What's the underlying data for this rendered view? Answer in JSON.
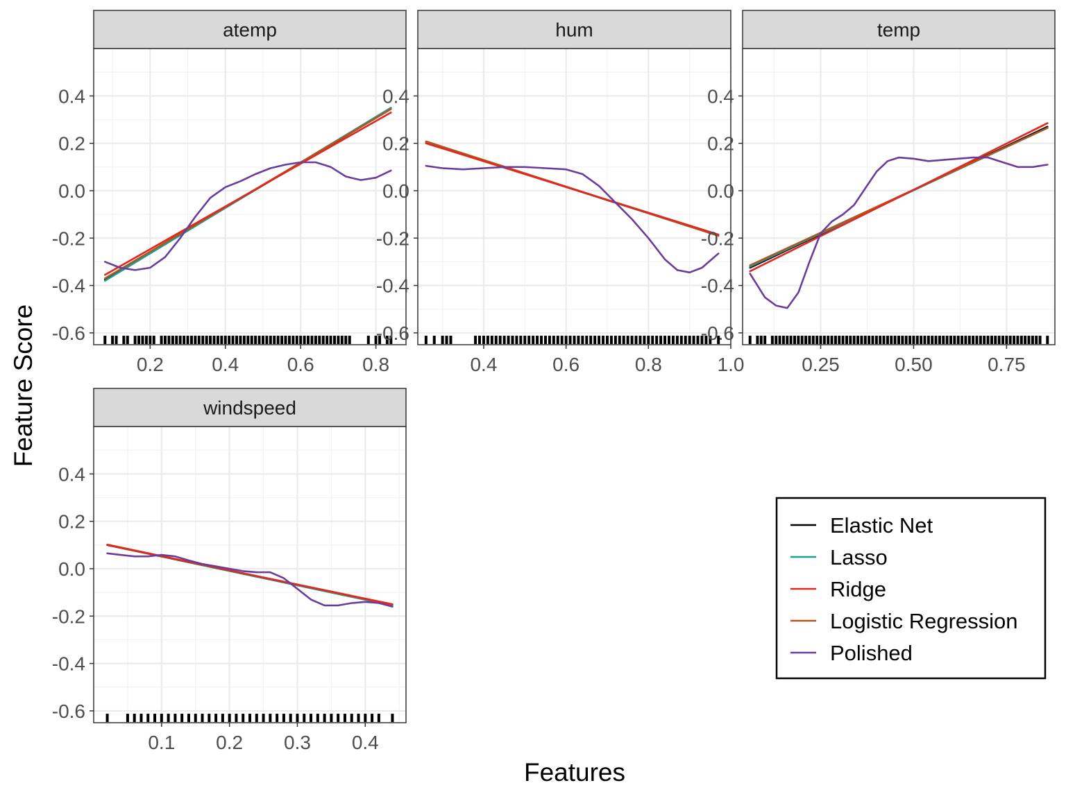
{
  "chart_data": {
    "type": "line",
    "xlabel": "Features",
    "ylabel": "Feature Score",
    "ylim": [
      -0.65,
      0.6
    ],
    "y_ticks": [
      -0.6,
      -0.4,
      -0.2,
      0.0,
      0.2,
      0.4
    ],
    "y_tick_labels": [
      "-0.6",
      "-0.4",
      "-0.2",
      "0.0",
      "0.2",
      "0.4"
    ],
    "grid": true,
    "legend_position": "bottom-right",
    "series": [
      {
        "name": "Elastic Net",
        "color": "#000000"
      },
      {
        "name": "Lasso",
        "color": "#1b9e96"
      },
      {
        "name": "Ridge",
        "color": "#e3271e"
      },
      {
        "name": "Logistic Regression",
        "color": "#b0561f"
      },
      {
        "name": "Polished",
        "color": "#6a3d9a"
      }
    ],
    "panels": [
      {
        "title": "atemp",
        "xlim": [
          0.05,
          0.88
        ],
        "x_ticks": [
          0.2,
          0.4,
          0.6,
          0.8
        ],
        "x_tick_labels": [
          "0.2",
          "0.4",
          "0.6",
          "0.8"
        ],
        "lines": {
          "Elastic Net": [
            [
              0.08,
              -0.375
            ],
            [
              0.84,
              0.345
            ]
          ],
          "Lasso": [
            [
              0.08,
              -0.38
            ],
            [
              0.84,
              0.35
            ]
          ],
          "Ridge": [
            [
              0.08,
              -0.355
            ],
            [
              0.84,
              0.33
            ]
          ],
          "Logistic Regression": [
            [
              0.08,
              -0.37
            ],
            [
              0.84,
              0.345
            ]
          ],
          "Polished": [
            [
              0.08,
              -0.3
            ],
            [
              0.12,
              -0.325
            ],
            [
              0.16,
              -0.335
            ],
            [
              0.2,
              -0.325
            ],
            [
              0.24,
              -0.28
            ],
            [
              0.28,
              -0.2
            ],
            [
              0.32,
              -0.11
            ],
            [
              0.36,
              -0.03
            ],
            [
              0.4,
              0.015
            ],
            [
              0.44,
              0.04
            ],
            [
              0.48,
              0.07
            ],
            [
              0.52,
              0.095
            ],
            [
              0.56,
              0.11
            ],
            [
              0.6,
              0.12
            ],
            [
              0.64,
              0.12
            ],
            [
              0.68,
              0.1
            ],
            [
              0.72,
              0.06
            ],
            [
              0.76,
              0.045
            ],
            [
              0.8,
              0.055
            ],
            [
              0.84,
              0.085
            ]
          ]
        },
        "rug": [
          0.08,
          0.1,
          0.11,
          0.13,
          0.14,
          0.16,
          0.17,
          0.18,
          0.19,
          0.2,
          0.21,
          0.23,
          0.24,
          0.25,
          0.26,
          0.27,
          0.28,
          0.29,
          0.3,
          0.31,
          0.32,
          0.33,
          0.34,
          0.35,
          0.36,
          0.37,
          0.38,
          0.39,
          0.4,
          0.41,
          0.42,
          0.43,
          0.44,
          0.45,
          0.46,
          0.47,
          0.48,
          0.49,
          0.5,
          0.51,
          0.52,
          0.53,
          0.54,
          0.55,
          0.56,
          0.57,
          0.58,
          0.59,
          0.6,
          0.61,
          0.62,
          0.63,
          0.64,
          0.65,
          0.66,
          0.67,
          0.68,
          0.69,
          0.7,
          0.71,
          0.72,
          0.73,
          0.78,
          0.8,
          0.81,
          0.83,
          0.84
        ]
      },
      {
        "title": "hum",
        "xlim": [
          0.24,
          1.0
        ],
        "x_ticks": [
          0.4,
          0.6,
          0.8,
          1.0
        ],
        "x_tick_labels": [
          "0.4",
          "0.6",
          "0.8",
          "1.0"
        ],
        "lines": {
          "Elastic Net": [
            [
              0.26,
              0.205
            ],
            [
              0.97,
              -0.19
            ]
          ],
          "Lasso": [
            [
              0.26,
              0.205
            ],
            [
              0.97,
              -0.19
            ]
          ],
          "Ridge": [
            [
              0.26,
              0.2
            ],
            [
              0.97,
              -0.185
            ]
          ],
          "Logistic Regression": [
            [
              0.26,
              0.208
            ],
            [
              0.97,
              -0.19
            ]
          ],
          "Polished": [
            [
              0.26,
              0.105
            ],
            [
              0.3,
              0.095
            ],
            [
              0.35,
              0.09
            ],
            [
              0.4,
              0.095
            ],
            [
              0.45,
              0.1
            ],
            [
              0.5,
              0.1
            ],
            [
              0.55,
              0.095
            ],
            [
              0.6,
              0.09
            ],
            [
              0.64,
              0.07
            ],
            [
              0.68,
              0.02
            ],
            [
              0.72,
              -0.05
            ],
            [
              0.76,
              -0.12
            ],
            [
              0.8,
              -0.2
            ],
            [
              0.84,
              -0.29
            ],
            [
              0.87,
              -0.335
            ],
            [
              0.9,
              -0.345
            ],
            [
              0.93,
              -0.325
            ],
            [
              0.97,
              -0.265
            ]
          ]
        },
        "rug": [
          0.26,
          0.28,
          0.3,
          0.31,
          0.32,
          0.38,
          0.39,
          0.4,
          0.41,
          0.42,
          0.43,
          0.44,
          0.45,
          0.46,
          0.47,
          0.48,
          0.49,
          0.5,
          0.51,
          0.52,
          0.53,
          0.54,
          0.55,
          0.56,
          0.57,
          0.58,
          0.59,
          0.6,
          0.61,
          0.62,
          0.63,
          0.64,
          0.65,
          0.66,
          0.67,
          0.68,
          0.69,
          0.7,
          0.71,
          0.72,
          0.73,
          0.74,
          0.75,
          0.76,
          0.77,
          0.78,
          0.79,
          0.8,
          0.81,
          0.82,
          0.83,
          0.84,
          0.85,
          0.86,
          0.87,
          0.88,
          0.89,
          0.9,
          0.91,
          0.92,
          0.93,
          0.94,
          0.95,
          0.97
        ]
      },
      {
        "title": "temp",
        "xlim": [
          0.04,
          0.88
        ],
        "x_ticks": [
          0.25,
          0.5,
          0.75
        ],
        "x_tick_labels": [
          "0.25",
          "0.50",
          "0.75"
        ],
        "lines": {
          "Elastic Net": [
            [
              0.06,
              -0.325
            ],
            [
              0.86,
              0.27
            ]
          ],
          "Lasso": [
            [
              0.06,
              -0.32
            ],
            [
              0.86,
              0.265
            ]
          ],
          "Ridge": [
            [
              0.06,
              -0.34
            ],
            [
              0.86,
              0.285
            ]
          ],
          "Logistic Regression": [
            [
              0.06,
              -0.315
            ],
            [
              0.86,
              0.265
            ]
          ],
          "Polished": [
            [
              0.06,
              -0.35
            ],
            [
              0.08,
              -0.4
            ],
            [
              0.1,
              -0.45
            ],
            [
              0.13,
              -0.485
            ],
            [
              0.16,
              -0.495
            ],
            [
              0.19,
              -0.43
            ],
            [
              0.22,
              -0.3
            ],
            [
              0.25,
              -0.18
            ],
            [
              0.28,
              -0.13
            ],
            [
              0.31,
              -0.1
            ],
            [
              0.34,
              -0.06
            ],
            [
              0.37,
              0.01
            ],
            [
              0.4,
              0.08
            ],
            [
              0.43,
              0.125
            ],
            [
              0.46,
              0.14
            ],
            [
              0.5,
              0.135
            ],
            [
              0.54,
              0.125
            ],
            [
              0.58,
              0.13
            ],
            [
              0.62,
              0.135
            ],
            [
              0.66,
              0.14
            ],
            [
              0.7,
              0.14
            ],
            [
              0.74,
              0.12
            ],
            [
              0.78,
              0.1
            ],
            [
              0.82,
              0.1
            ],
            [
              0.86,
              0.11
            ]
          ]
        },
        "rug": [
          0.06,
          0.08,
          0.09,
          0.1,
          0.12,
          0.13,
          0.14,
          0.15,
          0.16,
          0.17,
          0.18,
          0.19,
          0.2,
          0.21,
          0.22,
          0.23,
          0.24,
          0.25,
          0.26,
          0.27,
          0.28,
          0.29,
          0.3,
          0.31,
          0.32,
          0.33,
          0.34,
          0.35,
          0.36,
          0.37,
          0.38,
          0.39,
          0.4,
          0.41,
          0.42,
          0.43,
          0.44,
          0.45,
          0.46,
          0.47,
          0.48,
          0.49,
          0.5,
          0.51,
          0.52,
          0.53,
          0.54,
          0.55,
          0.56,
          0.57,
          0.58,
          0.59,
          0.6,
          0.61,
          0.62,
          0.63,
          0.64,
          0.65,
          0.66,
          0.67,
          0.68,
          0.69,
          0.7,
          0.71,
          0.72,
          0.73,
          0.74,
          0.75,
          0.76,
          0.77,
          0.78,
          0.79,
          0.8,
          0.81,
          0.82,
          0.83,
          0.84,
          0.86
        ]
      },
      {
        "title": "windspeed",
        "xlim": [
          0.0,
          0.46
        ],
        "x_ticks": [
          0.1,
          0.2,
          0.3,
          0.4
        ],
        "x_tick_labels": [
          "0.1",
          "0.2",
          "0.3",
          "0.4"
        ],
        "lines": {
          "Elastic Net": [
            [
              0.02,
              0.1
            ],
            [
              0.44,
              -0.155
            ]
          ],
          "Lasso": [
            [
              0.02,
              0.1
            ],
            [
              0.44,
              -0.155
            ]
          ],
          "Ridge": [
            [
              0.02,
              0.1
            ],
            [
              0.44,
              -0.15
            ]
          ],
          "Logistic Regression": [
            [
              0.02,
              0.102
            ],
            [
              0.44,
              -0.152
            ]
          ],
          "Polished": [
            [
              0.02,
              0.065
            ],
            [
              0.04,
              0.058
            ],
            [
              0.06,
              0.052
            ],
            [
              0.08,
              0.052
            ],
            [
              0.1,
              0.058
            ],
            [
              0.12,
              0.052
            ],
            [
              0.14,
              0.035
            ],
            [
              0.16,
              0.02
            ],
            [
              0.18,
              0.01
            ],
            [
              0.2,
              0.0
            ],
            [
              0.22,
              -0.01
            ],
            [
              0.24,
              -0.015
            ],
            [
              0.26,
              -0.015
            ],
            [
              0.28,
              -0.04
            ],
            [
              0.3,
              -0.085
            ],
            [
              0.32,
              -0.13
            ],
            [
              0.34,
              -0.155
            ],
            [
              0.36,
              -0.155
            ],
            [
              0.38,
              -0.145
            ],
            [
              0.4,
              -0.14
            ],
            [
              0.42,
              -0.145
            ],
            [
              0.44,
              -0.16
            ]
          ]
        },
        "rug": [
          0.02,
          0.05,
          0.06,
          0.07,
          0.08,
          0.09,
          0.1,
          0.11,
          0.12,
          0.13,
          0.14,
          0.15,
          0.16,
          0.17,
          0.18,
          0.19,
          0.2,
          0.21,
          0.22,
          0.23,
          0.24,
          0.25,
          0.26,
          0.27,
          0.28,
          0.29,
          0.3,
          0.31,
          0.32,
          0.33,
          0.34,
          0.35,
          0.36,
          0.37,
          0.38,
          0.39,
          0.4,
          0.41,
          0.42,
          0.44
        ]
      }
    ]
  }
}
